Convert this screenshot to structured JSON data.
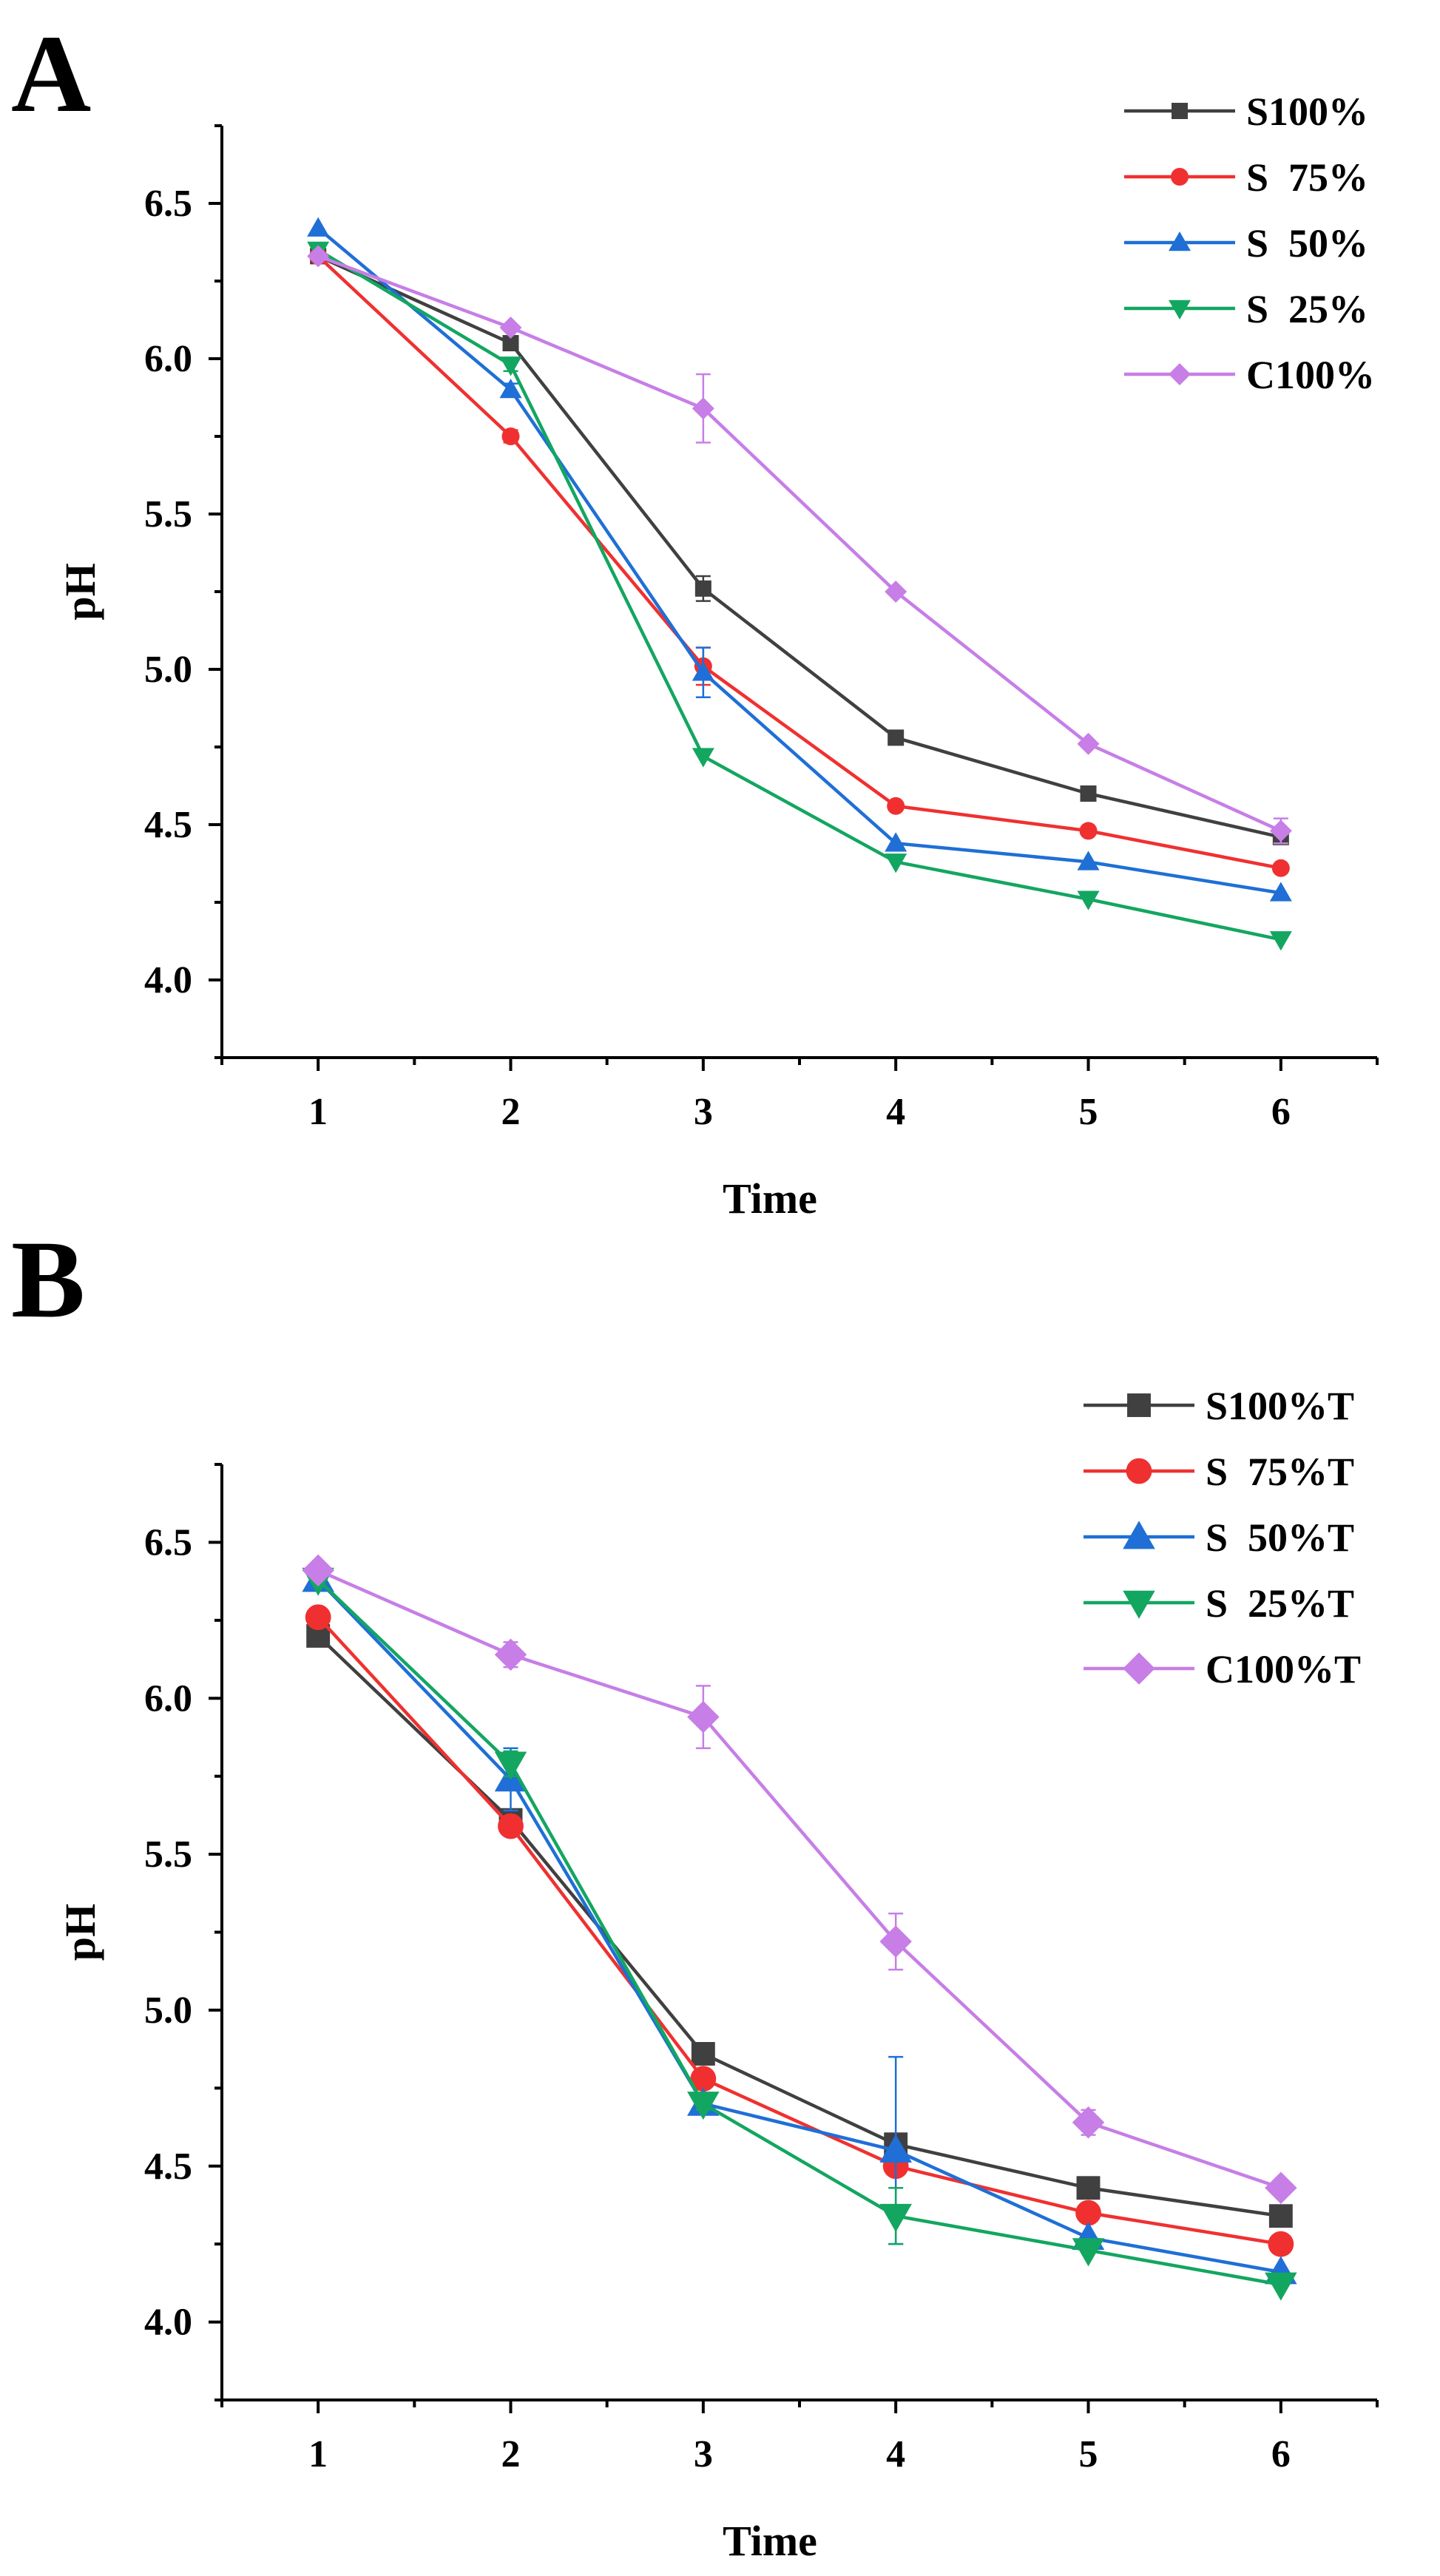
{
  "chart_data": [
    {
      "type": "line",
      "panel_label": "A",
      "xlabel": "Time",
      "ylabel": "pH",
      "x": [
        1,
        2,
        3,
        4,
        5,
        6
      ],
      "x_ticks": [
        "1",
        "2",
        "3",
        "4",
        "5",
        "6"
      ],
      "y_ticks": [
        "4.0",
        "4.5",
        "5.0",
        "5.5",
        "6.0",
        "6.5"
      ],
      "xlim": [
        0.5,
        6.5
      ],
      "ylim": [
        3.75,
        6.75
      ],
      "legend_position": "top-right",
      "series": [
        {
          "name": "S100%",
          "color": "#404040",
          "marker": "square",
          "values": [
            6.33,
            6.05,
            5.26,
            4.78,
            4.6,
            4.46
          ],
          "err": [
            0.01,
            0.02,
            0.04,
            0.01,
            0.01,
            0.02
          ]
        },
        {
          "name": "S  75%",
          "color": "#f03030",
          "marker": "circle",
          "values": [
            6.33,
            5.75,
            5.01,
            4.56,
            4.48,
            4.36
          ],
          "err": [
            0.01,
            0.02,
            0.06,
            0.01,
            0.01,
            0.01
          ]
        },
        {
          "name": "S  50%",
          "color": "#1f6fd6",
          "marker": "triangle-up",
          "values": [
            6.42,
            5.9,
            4.99,
            4.44,
            4.38,
            4.28
          ],
          "err": [
            0.01,
            0.02,
            0.08,
            0.01,
            0.01,
            0.01
          ]
        },
        {
          "name": "S  25%",
          "color": "#13a660",
          "marker": "triangle-down",
          "values": [
            6.35,
            5.98,
            4.72,
            4.38,
            4.26,
            4.13
          ],
          "err": [
            0.01,
            0.02,
            0.01,
            0.01,
            0.01,
            0.01
          ]
        },
        {
          "name": "C100%",
          "color": "#c77ee6",
          "marker": "diamond",
          "values": [
            6.33,
            6.1,
            5.84,
            5.25,
            4.76,
            4.48
          ],
          "err": [
            0.01,
            0.01,
            0.11,
            0.01,
            0.01,
            0.04
          ]
        }
      ]
    },
    {
      "type": "line",
      "panel_label": "B",
      "xlabel": "Time",
      "ylabel": "pH",
      "x": [
        1,
        2,
        3,
        4,
        5,
        6
      ],
      "x_ticks": [
        "1",
        "2",
        "3",
        "4",
        "5",
        "6"
      ],
      "y_ticks": [
        "4.0",
        "4.5",
        "5.0",
        "5.5",
        "6.0",
        "6.5"
      ],
      "xlim": [
        0.5,
        6.5
      ],
      "ylim": [
        3.75,
        6.75
      ],
      "legend_position": "top-right",
      "series": [
        {
          "name": "S100%T",
          "color": "#404040",
          "marker": "square",
          "values": [
            6.2,
            5.61,
            4.86,
            4.57,
            4.43,
            4.34
          ],
          "err": [
            0.01,
            0.02,
            0.02,
            0.01,
            0.01,
            0.01
          ]
        },
        {
          "name": "S  75%T",
          "color": "#f03030",
          "marker": "circle",
          "values": [
            6.26,
            5.59,
            4.78,
            4.5,
            4.35,
            4.25
          ],
          "err": [
            0.01,
            0.02,
            0.02,
            0.01,
            0.01,
            0.01
          ]
        },
        {
          "name": "S  50%T",
          "color": "#1f6fd6",
          "marker": "triangle-up",
          "values": [
            6.38,
            5.74,
            4.7,
            4.55,
            4.27,
            4.16
          ],
          "err": [
            0.01,
            0.1,
            0.02,
            0.3,
            0.01,
            0.01
          ]
        },
        {
          "name": "S  25%T",
          "color": "#13a660",
          "marker": "triangle-down",
          "values": [
            6.38,
            5.79,
            4.7,
            4.34,
            4.23,
            4.12
          ],
          "err": [
            0.01,
            0.04,
            0.02,
            0.09,
            0.01,
            0.01
          ]
        },
        {
          "name": "C100%T",
          "color": "#c77ee6",
          "marker": "diamond",
          "values": [
            6.41,
            6.14,
            5.94,
            5.22,
            4.64,
            4.43
          ],
          "err": [
            0.01,
            0.04,
            0.1,
            0.09,
            0.04,
            0.02
          ]
        }
      ]
    }
  ]
}
